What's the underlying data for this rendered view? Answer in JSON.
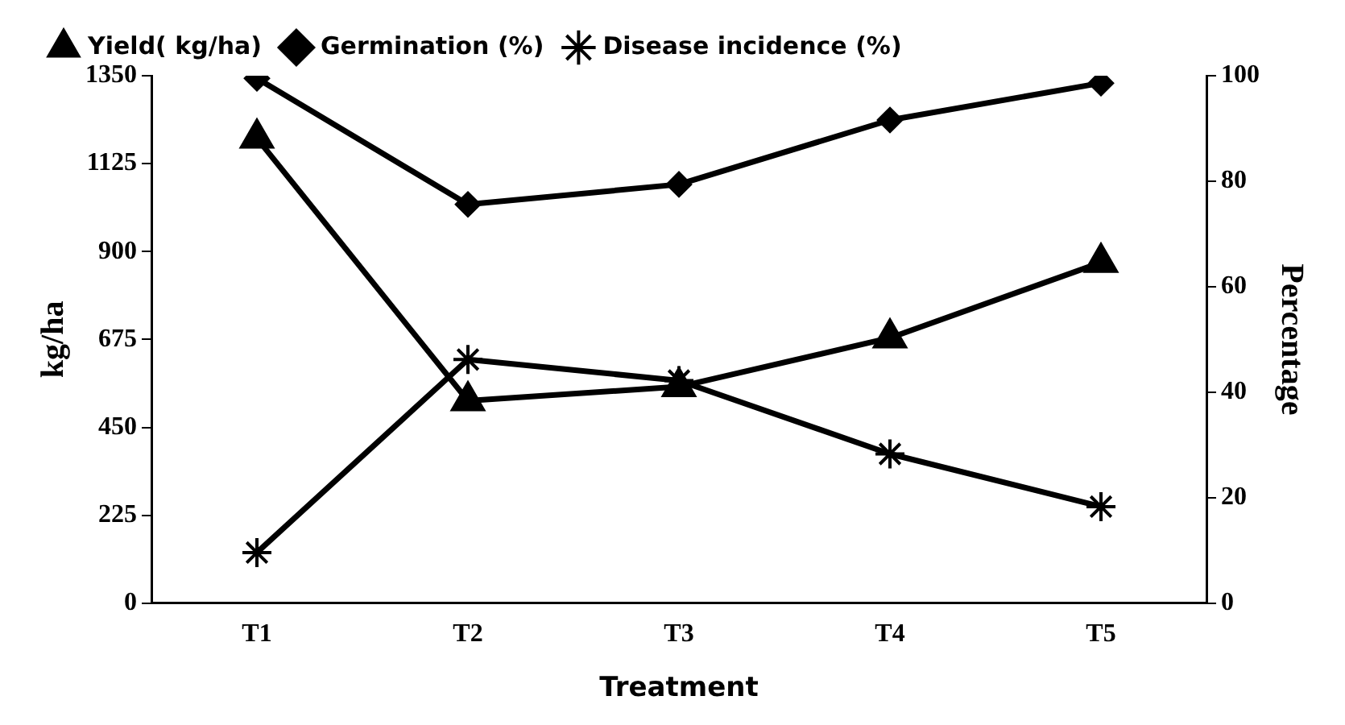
{
  "chart_data": {
    "type": "line",
    "xlabel": "Treatment",
    "ylabel": "kg/ha",
    "y2label": "Percentage",
    "categories": [
      "T1",
      "T2",
      "T3",
      "T4",
      "T5"
    ],
    "series": [
      {
        "name": "Yield( kg/ha)",
        "color": "#000000",
        "marker": "triangle",
        "values": [
          1190,
          518,
          554,
          679,
          872
        ]
      },
      {
        "name": "Germination (%)",
        "color": "#000000",
        "marker": "diamond",
        "axis": "y2",
        "values": [
          99.5,
          75.6,
          79.4,
          91.6,
          98.6
        ]
      },
      {
        "name": "Disease incidence (%)",
        "color": "#000000",
        "marker": "cross",
        "axis": "y2",
        "values": [
          9.6,
          46.2,
          42.2,
          28.3,
          18.3
        ]
      }
    ],
    "ylim": [
      0,
      1350
    ],
    "yticks": [
      0,
      225,
      450,
      675,
      900,
      1125,
      1350
    ],
    "y2lim": [
      0,
      100
    ],
    "y2ticks": [
      0,
      20,
      40,
      60,
      80,
      100
    ],
    "grid": false,
    "legend": "top",
    "line_style": "solid"
  }
}
